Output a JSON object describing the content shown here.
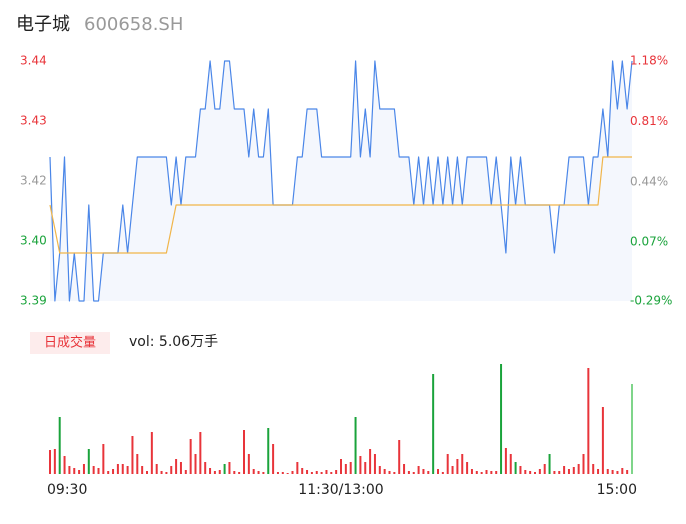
{
  "chart_data": [
    {
      "type": "line",
      "title": "电子城",
      "subtitle": "600658.SH",
      "xlim": [
        0,
        120
      ],
      "ylim": [
        3.39,
        3.44
      ],
      "yticks": [
        {
          "value": 3.39,
          "label": "3.39"
        },
        {
          "value": 3.4025,
          "label": "3.40"
        },
        {
          "value": 3.415,
          "label": "3.42"
        },
        {
          "value": 3.4275,
          "label": "3.43"
        },
        {
          "value": 3.44,
          "label": "3.44"
        }
      ],
      "y2lim": [
        -0.29,
        1.18
      ],
      "y2ticks": [
        {
          "value": -0.29,
          "label": "-0.29%"
        },
        {
          "value": 0.07,
          "label": "0.07%"
        },
        {
          "value": 0.44,
          "label": "0.44%"
        },
        {
          "value": 0.81,
          "label": "0.81%"
        },
        {
          "value": 1.18,
          "label": "1.18%"
        }
      ],
      "tick_colors": {
        "up": "#e8343a",
        "flat": "#999999",
        "down": "#1aa33b"
      },
      "series": [
        {
          "color": "#4a86e8",
          "area_color": "#f4f7fd",
          "values": [
            3.42,
            3.39,
            3.4,
            3.42,
            3.39,
            3.4,
            3.39,
            3.39,
            3.41,
            3.39,
            3.39,
            3.4,
            3.4,
            3.4,
            3.4,
            3.41,
            3.4,
            3.41,
            3.42,
            3.42,
            3.42,
            3.42,
            3.42,
            3.42,
            3.42,
            3.41,
            3.42,
            3.41,
            3.42,
            3.42,
            3.42,
            3.43,
            3.43,
            3.44,
            3.43,
            3.43,
            3.44,
            3.44,
            3.43,
            3.43,
            3.43,
            3.42,
            3.43,
            3.42,
            3.42,
            3.43,
            3.41,
            3.41,
            3.41,
            3.41,
            3.41,
            3.42,
            3.42,
            3.43,
            3.43,
            3.43,
            3.42,
            3.42,
            3.42,
            3.42,
            3.42,
            3.42,
            3.42,
            3.44,
            3.42,
            3.43,
            3.42,
            3.44,
            3.43,
            3.43,
            3.43,
            3.43,
            3.42,
            3.42,
            3.42,
            3.41,
            3.42,
            3.41,
            3.42,
            3.41,
            3.42,
            3.41,
            3.42,
            3.41,
            3.42,
            3.41,
            3.42,
            3.42,
            3.42,
            3.42,
            3.42,
            3.41,
            3.42,
            3.41,
            3.4,
            3.42,
            3.41,
            3.42,
            3.41,
            3.41,
            3.41,
            3.41,
            3.41,
            3.41,
            3.4,
            3.41,
            3.41,
            3.42,
            3.42,
            3.42,
            3.42,
            3.41,
            3.42,
            3.42,
            3.43,
            3.42,
            3.44,
            3.43,
            3.44,
            3.43,
            3.44
          ]
        },
        {
          "color": "#f0b54a",
          "values": [
            3.41,
            3.405,
            3.4,
            3.4,
            3.4,
            3.4,
            3.4,
            3.4,
            3.4,
            3.4,
            3.4,
            3.4,
            3.4,
            3.4,
            3.4,
            3.4,
            3.4,
            3.4,
            3.4,
            3.4,
            3.4,
            3.4,
            3.4,
            3.4,
            3.4,
            3.405,
            3.41,
            3.41,
            3.41,
            3.41,
            3.41,
            3.41,
            3.41,
            3.41,
            3.41,
            3.41,
            3.41,
            3.41,
            3.41,
            3.41,
            3.41,
            3.41,
            3.41,
            3.41,
            3.41,
            3.41,
            3.41,
            3.41,
            3.41,
            3.41,
            3.41,
            3.41,
            3.41,
            3.41,
            3.41,
            3.41,
            3.41,
            3.41,
            3.41,
            3.41,
            3.41,
            3.41,
            3.41,
            3.41,
            3.41,
            3.41,
            3.41,
            3.41,
            3.41,
            3.41,
            3.41,
            3.41,
            3.41,
            3.41,
            3.41,
            3.41,
            3.41,
            3.41,
            3.41,
            3.41,
            3.41,
            3.41,
            3.41,
            3.41,
            3.41,
            3.41,
            3.41,
            3.41,
            3.41,
            3.41,
            3.41,
            3.41,
            3.41,
            3.41,
            3.41,
            3.41,
            3.41,
            3.41,
            3.41,
            3.41,
            3.41,
            3.41,
            3.41,
            3.41,
            3.41,
            3.41,
            3.41,
            3.41,
            3.41,
            3.41,
            3.41,
            3.41,
            3.41,
            3.41,
            3.42,
            3.42,
            3.42,
            3.42,
            3.42,
            3.42,
            3.42
          ]
        }
      ]
    },
    {
      "type": "bar",
      "title": "日成交量",
      "subtitle": "vol: 5.06万手",
      "xlim": [
        0,
        120
      ],
      "xticks": [
        {
          "value": 0,
          "label": "09:30"
        },
        {
          "value": 60,
          "label": "11:30/13:00"
        },
        {
          "value": 120,
          "label": "15:00"
        }
      ],
      "ylim": [
        0,
        110
      ],
      "values": [
        24,
        25,
        57,
        18,
        8,
        6,
        4,
        10,
        25,
        8,
        6,
        30,
        3,
        5,
        10,
        10,
        8,
        38,
        20,
        8,
        3,
        42,
        10,
        3,
        2,
        8,
        15,
        12,
        4,
        35,
        20,
        42,
        12,
        6,
        3,
        4,
        10,
        12,
        3,
        2,
        44,
        20,
        5,
        3,
        2,
        46,
        30,
        2,
        2,
        1,
        3,
        12,
        6,
        4,
        2,
        3,
        2,
        4,
        2,
        4,
        15,
        10,
        12,
        57,
        18,
        12,
        25,
        20,
        8,
        5,
        3,
        2,
        34,
        10,
        3,
        2,
        8,
        5,
        3,
        100,
        5,
        2,
        20,
        8,
        15,
        20,
        12,
        5,
        3,
        2,
        4,
        3,
        3,
        110,
        26,
        20,
        12,
        8,
        4,
        3,
        2,
        5,
        10,
        20,
        3,
        3,
        8,
        5,
        7,
        10,
        20,
        106,
        10,
        5,
        67,
        5,
        4,
        3,
        6,
        4,
        90
      ],
      "colors": [
        "#e8343a",
        "#e8343a",
        "#1aa33b",
        "#e8343a",
        "#e8343a",
        "#e8343a",
        "#e8343a",
        "#e8343a",
        "#1aa33b",
        "#e8343a",
        "#e8343a",
        "#e8343a",
        "#e8343a",
        "#e8343a",
        "#e8343a",
        "#e8343a",
        "#e8343a",
        "#e8343a",
        "#e8343a",
        "#e8343a",
        "#e8343a",
        "#e8343a",
        "#e8343a",
        "#e8343a",
        "#e8343a",
        "#e8343a",
        "#e8343a",
        "#e8343a",
        "#e8343a",
        "#e8343a",
        "#e8343a",
        "#e8343a",
        "#e8343a",
        "#e8343a",
        "#e8343a",
        "#e8343a",
        "#1aa33b",
        "#e8343a",
        "#e8343a",
        "#e8343a",
        "#e8343a",
        "#e8343a",
        "#e8343a",
        "#e8343a",
        "#e8343a",
        "#1aa33b",
        "#e8343a",
        "#e8343a",
        "#e8343a",
        "#e8343a",
        "#e8343a",
        "#e8343a",
        "#e8343a",
        "#e8343a",
        "#e8343a",
        "#e8343a",
        "#e8343a",
        "#e8343a",
        "#e8343a",
        "#e8343a",
        "#e8343a",
        "#e8343a",
        "#e8343a",
        "#1aa33b",
        "#e8343a",
        "#e8343a",
        "#e8343a",
        "#e8343a",
        "#e8343a",
        "#e8343a",
        "#e8343a",
        "#e8343a",
        "#e8343a",
        "#e8343a",
        "#e8343a",
        "#e8343a",
        "#e8343a",
        "#e8343a",
        "#e8343a",
        "#1aa33b",
        "#e8343a",
        "#e8343a",
        "#e8343a",
        "#e8343a",
        "#e8343a",
        "#e8343a",
        "#e8343a",
        "#e8343a",
        "#e8343a",
        "#e8343a",
        "#e8343a",
        "#e8343a",
        "#e8343a",
        "#1aa33b",
        "#e8343a",
        "#e8343a",
        "#1aa33b",
        "#e8343a",
        "#e8343a",
        "#e8343a",
        "#e8343a",
        "#e8343a",
        "#e8343a",
        "#1aa33b",
        "#e8343a",
        "#e8343a",
        "#e8343a",
        "#e8343a",
        "#e8343a",
        "#e8343a",
        "#e8343a",
        "#e8343a",
        "#e8343a",
        "#e8343a",
        "#e8343a",
        "#e8343a",
        "#e8343a",
        "#e8343a",
        "#e8343a",
        "#e8343a",
        "#7fd58a"
      ]
    }
  ]
}
